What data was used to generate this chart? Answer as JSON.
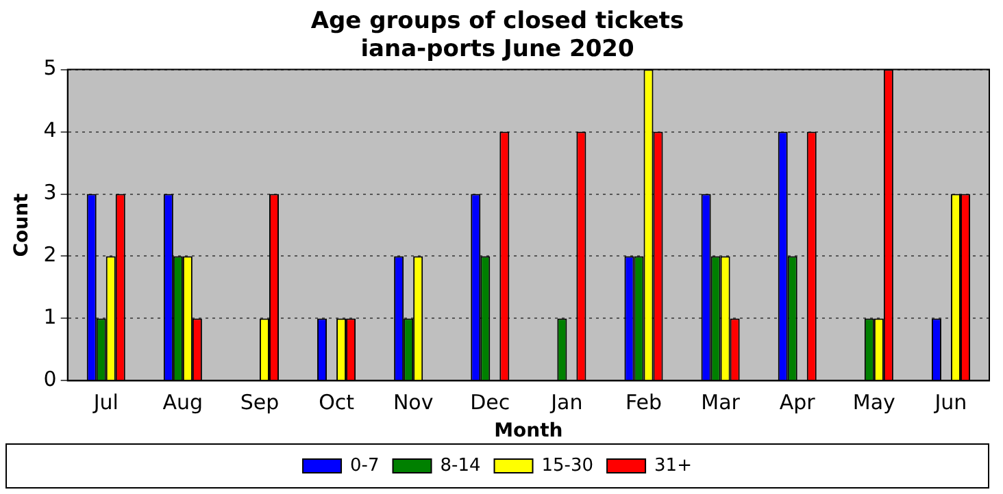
{
  "chart_data": {
    "type": "bar",
    "title": "Age groups of closed tickets\niana-ports June 2020",
    "xlabel": "Month",
    "ylabel": "Count",
    "categories": [
      "Jul",
      "Aug",
      "Sep",
      "Oct",
      "Nov",
      "Dec",
      "Jan",
      "Feb",
      "Mar",
      "Apr",
      "May",
      "Jun"
    ],
    "series": [
      {
        "name": "0-7",
        "color": "#0000ff",
        "values": [
          3,
          3,
          0,
          1,
          2,
          3,
          0,
          2,
          3,
          4,
          0,
          1
        ]
      },
      {
        "name": "8-14",
        "color": "#008000",
        "values": [
          1,
          2,
          0,
          0,
          1,
          2,
          1,
          2,
          2,
          2,
          1,
          0
        ]
      },
      {
        "name": "15-30",
        "color": "#ffff00",
        "values": [
          2,
          2,
          1,
          1,
          2,
          0,
          0,
          5,
          2,
          0,
          1,
          3
        ]
      },
      {
        "name": "31+",
        "color": "#ff0000",
        "values": [
          3,
          1,
          3,
          1,
          0,
          4,
          4,
          4,
          1,
          4,
          5,
          3
        ]
      }
    ],
    "ylim": [
      0,
      5
    ],
    "yticks": [
      0,
      1,
      2,
      3,
      4,
      5
    ],
    "grid": "y",
    "legend": "bottom"
  }
}
